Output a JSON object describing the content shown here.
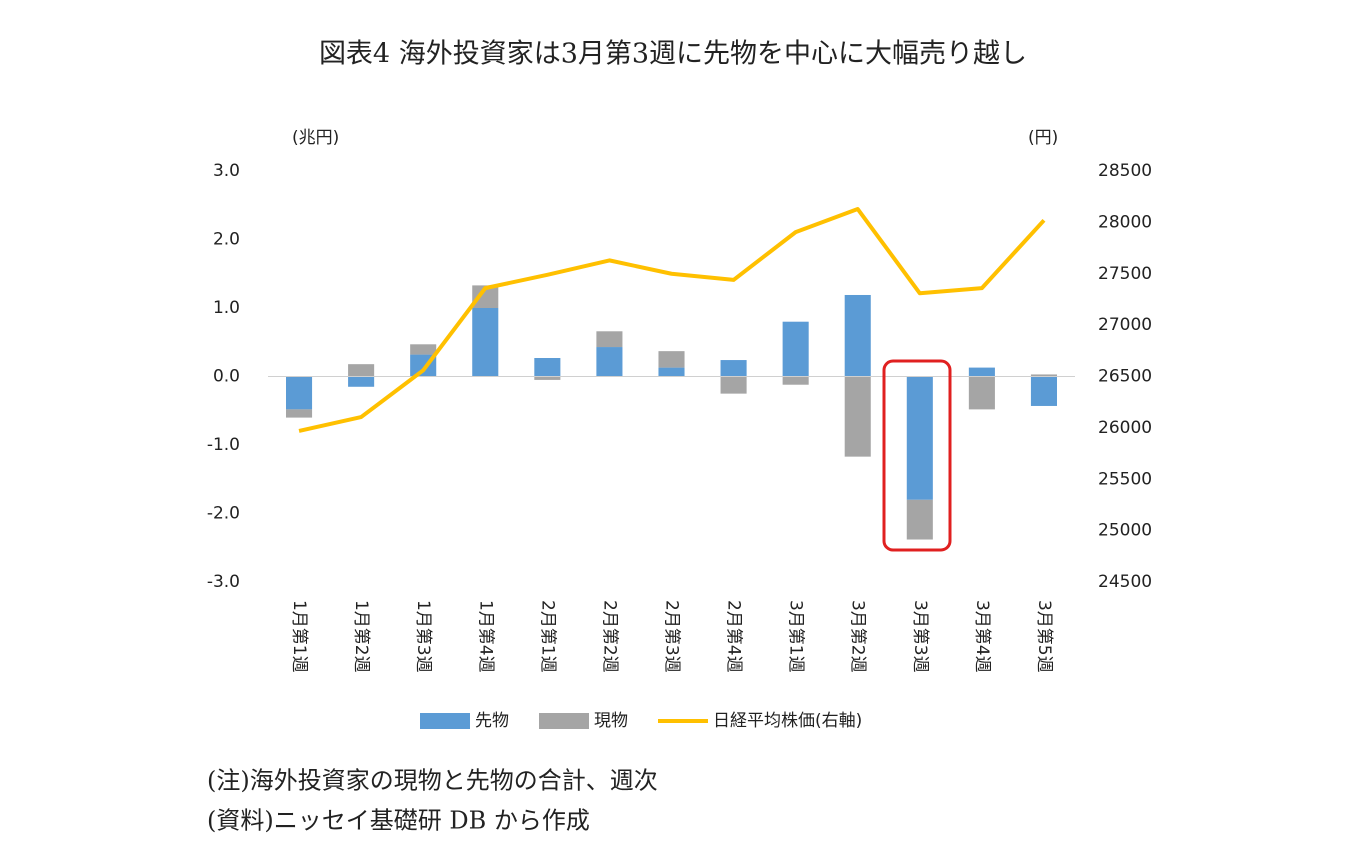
{
  "chart_data": {
    "type": "bar",
    "title": "図表4 海外投資家は3月第3週に先物を中心に大幅売り越し",
    "y_label": "(兆円)",
    "y2_label": "(円)",
    "categories": [
      "1月第1週",
      "1月第2週",
      "1月第3週",
      "1月第4週",
      "2月第1週",
      "2月第2週",
      "2月第3週",
      "2月第4週",
      "3月第1週",
      "3月第2週",
      "3月第3週",
      "3月第4週",
      "3月第5週"
    ],
    "series": [
      {
        "name": "先物",
        "color": "#5b9bd5",
        "values": [
          -0.48,
          -0.15,
          0.32,
          1.0,
          0.27,
          0.43,
          0.13,
          0.24,
          0.8,
          1.19,
          -1.8,
          0.13,
          -0.43
        ]
      },
      {
        "name": "現物",
        "color": "#a5a5a5",
        "values": [
          -0.12,
          0.18,
          0.15,
          0.33,
          -0.05,
          0.23,
          0.24,
          -0.25,
          -0.12,
          -1.17,
          -0.58,
          -0.48,
          0.03
        ]
      },
      {
        "name": "日経平均株価(右軸)",
        "color": "#ffc000",
        "type": "line",
        "axis": "y2",
        "values": [
          25970,
          26105,
          26560,
          27360,
          27490,
          27630,
          27500,
          27440,
          27905,
          28130,
          27310,
          27360,
          28020
        ]
      }
    ],
    "ylim": [
      -3,
      3
    ],
    "yticks": [
      {
        "value": -3,
        "label": "-3.0"
      },
      {
        "value": -2,
        "label": "-2.0"
      },
      {
        "value": -1,
        "label": "-1.0"
      },
      {
        "value": 0,
        "label": "0.0"
      },
      {
        "value": 1,
        "label": "1.0"
      },
      {
        "value": 2,
        "label": "2.0"
      },
      {
        "value": 3,
        "label": "3.0"
      }
    ],
    "y2lim": [
      24500,
      28500
    ],
    "y2ticks": [
      24500,
      25000,
      25500,
      26000,
      26500,
      27000,
      27500,
      28000,
      28500
    ],
    "notes": [
      "(注)海外投資家の現物と先物の合計、週次",
      "(資料)ニッセイ基礎研 DB から作成"
    ]
  }
}
